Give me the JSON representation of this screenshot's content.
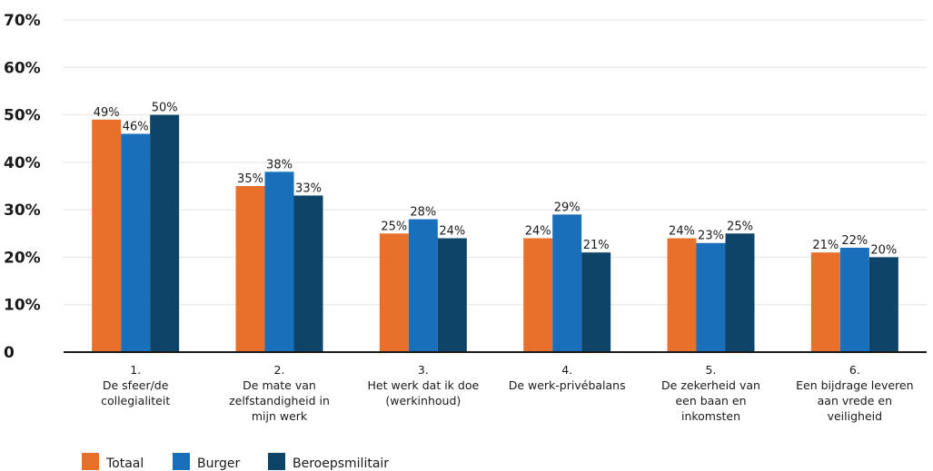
{
  "chart_data": {
    "type": "bar",
    "ylim": [
      0,
      70
    ],
    "yticks": [
      "0",
      "10%",
      "20%",
      "30%",
      "40%",
      "50%",
      "60%",
      "70%"
    ],
    "categories": [
      [
        "1.",
        "De sfeer/de",
        "collegialiteit"
      ],
      [
        "2.",
        "De mate van",
        "zelfstandigheid in",
        "mijn werk"
      ],
      [
        "3.",
        "Het werk dat ik doe",
        "(werkinhoud)"
      ],
      [
        "4.",
        "De werk-privébalans"
      ],
      [
        "5.",
        "De zekerheid van",
        "een baan en",
        "inkomsten"
      ],
      [
        "6.",
        "Een bijdrage leveren",
        "aan vrede en",
        "veiligheid"
      ]
    ],
    "series": [
      {
        "name": "Totaal",
        "color": "#e8702a",
        "values": [
          49,
          35,
          25,
          24,
          24,
          21
        ],
        "labels": [
          "49%",
          "35%",
          "25%",
          "24%",
          "24%",
          "21%"
        ]
      },
      {
        "name": "Burger",
        "color": "#1a6fba",
        "values": [
          46,
          38,
          28,
          29,
          23,
          22
        ],
        "labels": [
          "46%",
          "38%",
          "28%",
          "29%",
          "23%",
          "22%"
        ]
      },
      {
        "name": "Beroepsmilitair",
        "color": "#0e4468",
        "values": [
          50,
          33,
          24,
          21,
          25,
          20
        ],
        "labels": [
          "50%",
          "33%",
          "24%",
          "21%",
          "25%",
          "20%"
        ]
      }
    ],
    "grid": true,
    "legend": "bottom-left"
  }
}
